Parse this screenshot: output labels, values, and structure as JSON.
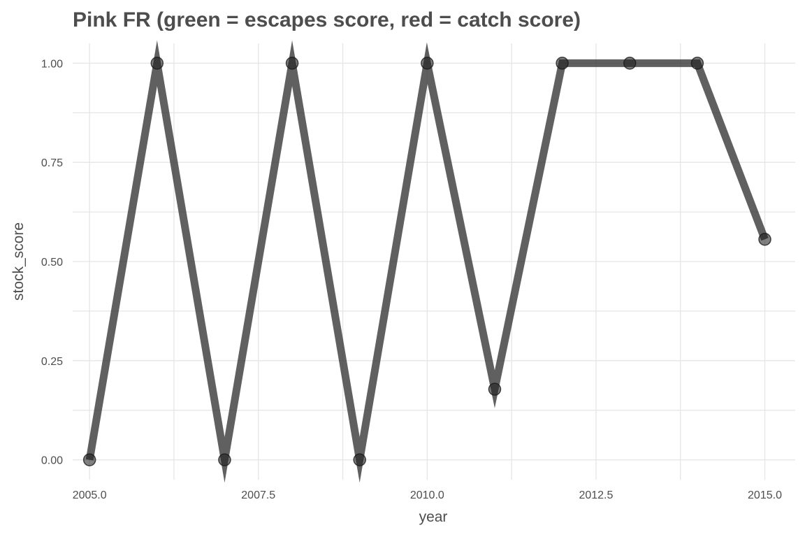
{
  "chart_data": {
    "type": "line",
    "title": "Pink FR (green = escapes score, red = catch score)",
    "xlabel": "year",
    "ylabel": "stock_score",
    "xlim": [
      2004.75,
      2015.45
    ],
    "ylim": [
      -0.05,
      1.05
    ],
    "x_ticks": [
      2005.0,
      2007.5,
      2010.0,
      2012.5,
      2015.0
    ],
    "x_tick_labels": [
      "2005.0",
      "2007.5",
      "2010.0",
      "2012.5",
      "2015.0"
    ],
    "y_ticks": [
      0.0,
      0.25,
      0.5,
      0.75,
      1.0
    ],
    "y_tick_labels": [
      "0.00",
      "0.25",
      "0.50",
      "0.75",
      "1.00"
    ],
    "grid": true,
    "series": [
      {
        "x": [
          2005,
          2006,
          2007,
          2008,
          2009,
          2010,
          2011,
          2012,
          2013,
          2014,
          2015
        ],
        "y": [
          0.0,
          1.0,
          0.0,
          1.0,
          0.0,
          1.0,
          0.178,
          1.0,
          1.0,
          1.0,
          0.556
        ],
        "color": "#333333"
      }
    ]
  }
}
